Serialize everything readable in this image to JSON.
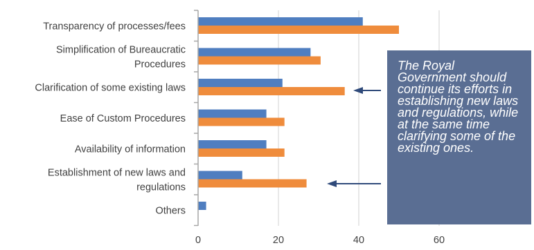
{
  "chart_data": {
    "type": "bar",
    "orientation": "horizontal",
    "categories": [
      [
        "Transparency of processes/fees"
      ],
      [
        "Simplification of Bureaucratic",
        "Procedures"
      ],
      [
        "Clarification of some existing laws"
      ],
      [
        "Ease of Custom Procedures"
      ],
      [
        "Availability of information"
      ],
      [
        "Establishment of new laws and",
        "regulations"
      ],
      [
        "Others"
      ]
    ],
    "series": [
      {
        "color": "#4f7ec0",
        "values": [
          41,
          28,
          21,
          17,
          17,
          11,
          2
        ]
      },
      {
        "color": "#ef8c3c",
        "values": [
          50,
          30.5,
          36.5,
          21.5,
          21.5,
          27,
          0
        ]
      }
    ],
    "xlim": [
      0,
      80
    ],
    "x_ticks": [
      "0",
      "20",
      "40",
      "60"
    ],
    "grid": true,
    "legend": false
  },
  "callout": {
    "text": "The Royal Government should continue its efforts in establishing new laws and regulations, while at the same time clarifying some of the existing ones.",
    "background": "#5a6e93"
  },
  "arrow_color": "#2f4a7a"
}
